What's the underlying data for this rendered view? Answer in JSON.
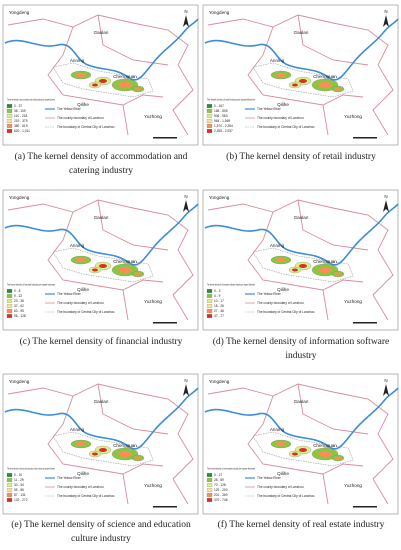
{
  "places": {
    "yongdeng": "Yongdeng",
    "gaolan": "Gaolan",
    "anning": "Anning",
    "chengguan": "Chengguan",
    "qilihe": "Qilihe",
    "yuzhong": "Yuzhong"
  },
  "north": "N",
  "legend_items": [
    "The Yellow River",
    "The county boundary of Lanzhou",
    "The boundary of Central City of Lanzhou"
  ],
  "panels": [
    {
      "caption": "(a) The kernel density of accommodation and catering industry",
      "legend_title": "The kernel density of accommodation and catering industry per square kilometre",
      "legend_ranges": [
        "0 - 37",
        "38 - 109",
        "110 - 218",
        "219 - 379",
        "380 - 619",
        "620 - 1,011"
      ]
    },
    {
      "caption": "(b) The kernel density of retail industry",
      "legend_title": "The kernel density of retail industry per square kilometre",
      "legend_ranges": [
        "0 - 167",
        "168 - 505",
        "506 - 963",
        "964 - 1,569",
        "1,570 - 2,354",
        "2,355 - 2,937"
      ]
    },
    {
      "caption": "(c) The kernel density of financial industry",
      "legend_title": "The kernel density of financial industry per square kilometre",
      "legend_ranges": [
        "0 - 8",
        "9 - 22",
        "23 - 36",
        "37 - 62",
        "63 - 95",
        "96 - 128"
      ]
    },
    {
      "caption": "(d) The kernel density of information software industry",
      "legend_title": "The kernel density of information software industry per square kilometre",
      "legend_ranges": [
        "0 - 3",
        "4 - 9",
        "10 - 17",
        "18 - 26",
        "27 - 46",
        "47 - 77"
      ]
    },
    {
      "caption": "(e) The kernel density of science and education culture industry",
      "legend_title": "The kernel density of science and education culture industry per square kilometre",
      "legend_ranges": [
        "0 - 10",
        "11 - 29",
        "30 - 54",
        "55 - 86",
        "87 - 131",
        "132 - 272"
      ]
    },
    {
      "caption": "(f) The kernel density of real estate industry",
      "legend_title": "The kernel density of real estate industry per square kilometre",
      "legend_ranges": [
        "0 - 27",
        "28 - 69",
        "70 - 128",
        "129 - 200",
        "201 - 369",
        "370 - 746"
      ]
    }
  ]
}
